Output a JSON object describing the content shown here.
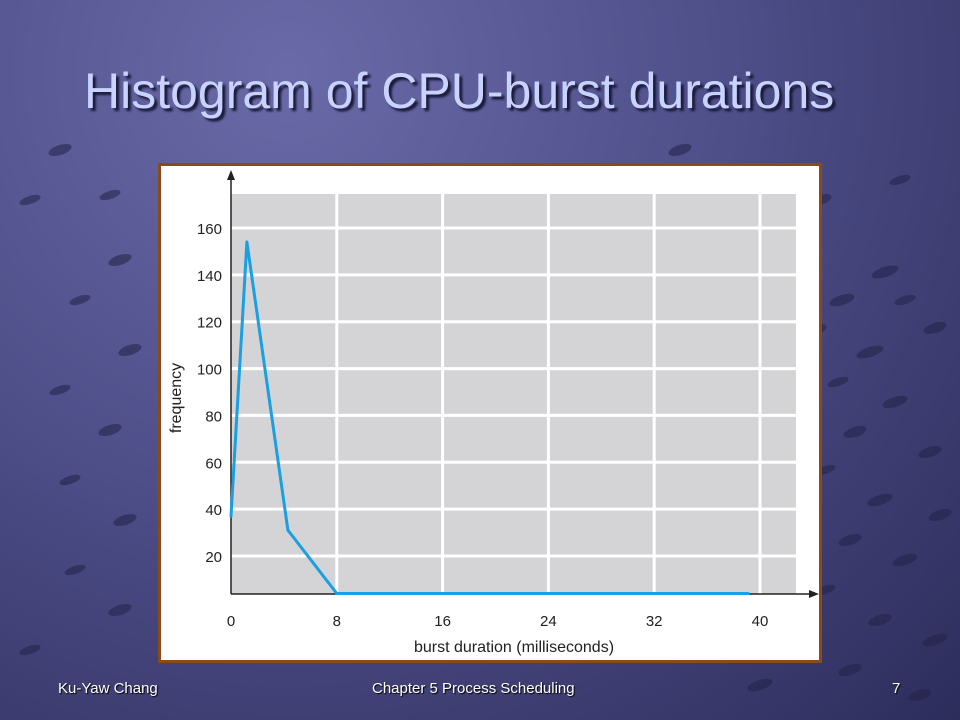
{
  "slide": {
    "title": "Histogram of CPU-burst durations"
  },
  "footer": {
    "author": "Ku-Yaw Chang",
    "chapter": "Chapter 5 Process Scheduling",
    "page": "7"
  },
  "chart_data": {
    "type": "line",
    "title": "",
    "xlabel": "burst duration (milliseconds)",
    "ylabel": "frequency",
    "xlim": [
      0,
      42.5
    ],
    "ylim": [
      0,
      172
    ],
    "xticks": [
      0,
      8,
      16,
      24,
      32,
      40
    ],
    "yticks": [
      20,
      40,
      60,
      80,
      100,
      120,
      140,
      160
    ],
    "grid": true,
    "colors": {
      "line": "#1a9fe0",
      "plot_bg": "#d4d4d6",
      "grid": "#ffffff"
    },
    "series": [
      {
        "x": [
          0,
          1.2,
          4.3,
          8,
          39.1
        ],
        "y": [
          37,
          154,
          31,
          4,
          4
        ]
      }
    ]
  }
}
